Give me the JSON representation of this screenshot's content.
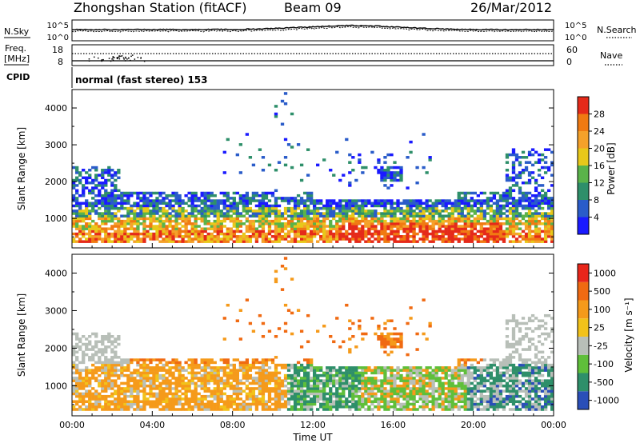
{
  "header": {
    "station": "Zhongshan Station (fitACF)",
    "beam": "Beam 09",
    "date": "26/Mar/2012"
  },
  "panels": {
    "noise": {
      "left_label": "N.Sky",
      "right_label": "N.Search",
      "left_ticks": [
        "10^5",
        "10^0"
      ],
      "right_ticks": [
        "10^5",
        "10^0"
      ]
    },
    "freq": {
      "left_label_line1": "Freq.",
      "left_label_line2": "[MHz]",
      "right_label": "Nave",
      "left_ticks": [
        "18",
        "8"
      ],
      "right_ticks": [
        "60",
        "0"
      ]
    },
    "cpid": {
      "label": "CPID",
      "text": "normal (fast stereo) 153"
    }
  },
  "chart_data": [
    {
      "type": "heatmap",
      "title": "",
      "ylabel": "Slant Range [km]",
      "xlabel": "",
      "ylim": [
        200,
        4500
      ],
      "yticks": [
        "1000",
        "2000",
        "3000",
        "4000"
      ],
      "colorbar": {
        "label": "Power [dB]",
        "ticks": [
          "4",
          "8",
          "12",
          "16",
          "20",
          "24",
          "28"
        ],
        "colors": [
          "#1a1aff",
          "#2a5cc9",
          "#2e8f6a",
          "#5ab34a",
          "#e8c81a",
          "#f5a12a",
          "#f07a12",
          "#e52a1a"
        ]
      }
    },
    {
      "type": "heatmap",
      "title": "",
      "ylabel": "Slant Range [km]",
      "xlabel": "Time UT",
      "ylim": [
        200,
        4500
      ],
      "yticks": [
        "1000",
        "2000",
        "3000",
        "4000"
      ],
      "xticks": [
        "00:00",
        "04:00",
        "08:00",
        "12:00",
        "16:00",
        "20:00",
        "00:00"
      ],
      "colorbar": {
        "label": "Velocity [m s⁻¹]",
        "ticks": [
          "1000",
          "500",
          "100",
          "25",
          "-25",
          "-100",
          "-500",
          "-1000"
        ],
        "colors": [
          "#2a4fb8",
          "#2e8f6a",
          "#5fbf3a",
          "#b8bfb8",
          "#f2c21a",
          "#f59a1a",
          "#f06a12",
          "#e8261a"
        ]
      }
    }
  ]
}
